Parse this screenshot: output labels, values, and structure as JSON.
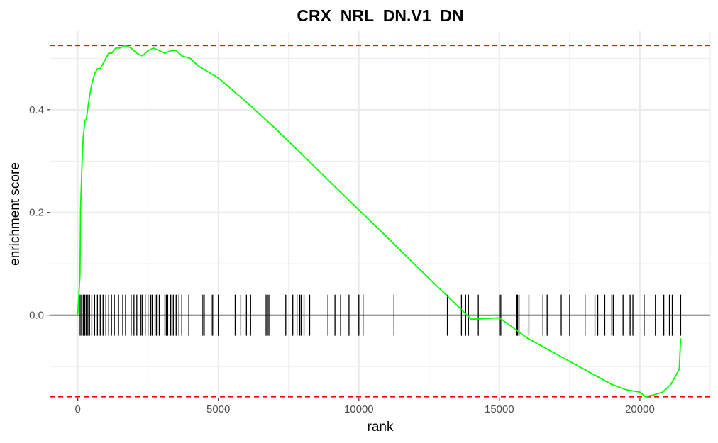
{
  "chart_data": {
    "type": "line",
    "title": "CRX_NRL_DN.V1_DN",
    "xlabel": "rank",
    "ylabel": "enrichment score",
    "xlim": [
      -1000,
      22500
    ],
    "ylim": [
      -0.162,
      0.553
    ],
    "x_ticks": [
      0,
      5000,
      10000,
      15000,
      20000
    ],
    "x_tick_labels": [
      "0",
      "5000",
      "10000",
      "15000",
      "20000"
    ],
    "y_ticks": [
      0.0,
      0.2,
      0.4
    ],
    "y_tick_labels": [
      "0.0",
      "0.2",
      "0.4"
    ],
    "grid": true,
    "legend": "none",
    "max_es": 0.525,
    "min_es": -0.159,
    "colors": {
      "curve": "#00ff00",
      "bounds": "#ff0000",
      "hits": "#000000",
      "grid": "#ebebeb"
    },
    "series": [
      {
        "x": [
          0,
          80,
          100,
          130,
          160,
          200,
          260,
          300,
          400,
          500,
          600,
          700,
          800,
          900,
          1000,
          1100,
          1200,
          1350,
          1500,
          1700,
          1900,
          2100,
          2300,
          2500,
          2700,
          2900,
          3100,
          3300,
          3500,
          3700,
          4000,
          4300,
          4600,
          5000,
          6000,
          7000,
          8000,
          9000,
          10000,
          11000,
          12000,
          13000,
          14000,
          15000,
          15500,
          16000,
          16500,
          17000,
          17500,
          18000,
          18500,
          19000,
          19500,
          20000,
          20200,
          20500,
          20800,
          21100,
          21400,
          21450
        ],
        "y": [
          0.0,
          0.08,
          0.21,
          0.26,
          0.31,
          0.35,
          0.38,
          0.38,
          0.42,
          0.45,
          0.47,
          0.48,
          0.48,
          0.49,
          0.5,
          0.51,
          0.51,
          0.52,
          0.52,
          0.525,
          0.52,
          0.51,
          0.505,
          0.515,
          0.52,
          0.515,
          0.51,
          0.515,
          0.515,
          0.505,
          0.5,
          0.485,
          0.475,
          0.462,
          0.415,
          0.365,
          0.312,
          0.258,
          0.205,
          0.152,
          0.098,
          0.045,
          -0.008,
          -0.005,
          -0.025,
          -0.045,
          -0.06,
          -0.075,
          -0.09,
          -0.105,
          -0.12,
          -0.135,
          -0.145,
          -0.15,
          -0.159,
          -0.155,
          -0.15,
          -0.135,
          -0.105,
          -0.045
        ]
      }
    ],
    "hits": [
      60,
      110,
      150,
      200,
      250,
      300,
      360,
      420,
      500,
      600,
      700,
      800,
      900,
      1000,
      1100,
      1200,
      1300,
      1450,
      1600,
      1700,
      1900,
      2000,
      2100,
      2250,
      2300,
      2400,
      2500,
      2600,
      2650,
      2750,
      2800,
      2900,
      3100,
      3150,
      3200,
      3300,
      3350,
      3400,
      3500,
      3600,
      3700,
      3950,
      4450,
      4500,
      4750,
      4800,
      5000,
      5600,
      5800,
      6000,
      6150,
      6700,
      6750,
      6800,
      7400,
      7650,
      7800,
      7900,
      7950,
      8050,
      8250,
      8900,
      9150,
      9350,
      9650,
      10000,
      10150,
      11250,
      13150,
      13650,
      13800,
      13900,
      14250,
      15000,
      15050,
      15600,
      15650,
      15700,
      16050,
      16550,
      16700,
      17200,
      17500,
      18050,
      18400,
      18500,
      18750,
      19000,
      19050,
      19400,
      19650,
      19750,
      20150,
      20550,
      20850,
      21050,
      21150,
      21450
    ]
  }
}
